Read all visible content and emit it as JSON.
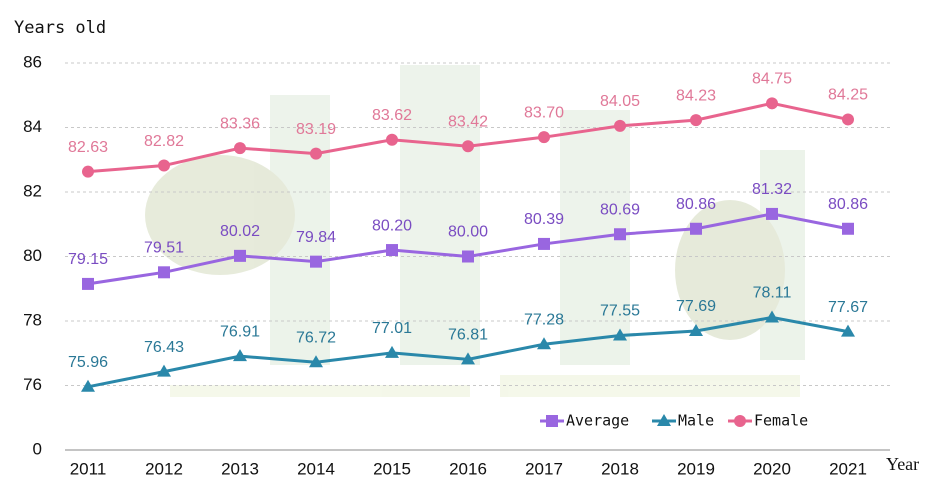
{
  "chart_data": {
    "type": "line",
    "y_axis_label": "Years old",
    "x_axis_label": "Year",
    "categories": [
      "2011",
      "2012",
      "2013",
      "2014",
      "2015",
      "2016",
      "2017",
      "2018",
      "2019",
      "2020",
      "2021"
    ],
    "series": [
      {
        "name": "Average",
        "color": "#9966e0",
        "label_color": "#7a4cc2",
        "marker": "square",
        "values": [
          79.15,
          79.51,
          80.02,
          79.84,
          80.2,
          80.0,
          80.39,
          80.69,
          80.86,
          81.32,
          80.86
        ],
        "value_labels": [
          "79.15",
          "79.51",
          "80.02",
          "79.84",
          "80.20",
          "80.00",
          "80.39",
          "80.69",
          "80.86",
          "81.32",
          "80.86"
        ]
      },
      {
        "name": "Male",
        "color": "#2a88aa",
        "label_color": "#2a7896",
        "marker": "triangle",
        "values": [
          75.96,
          76.43,
          76.91,
          76.72,
          77.01,
          76.81,
          77.28,
          77.55,
          77.69,
          78.11,
          77.67
        ],
        "value_labels": [
          "75.96",
          "76.43",
          "76.91",
          "76.72",
          "77.01",
          "76.81",
          "77.28",
          "77.55",
          "77.69",
          "78.11",
          "77.67"
        ]
      },
      {
        "name": "Female",
        "color": "#e8648e",
        "label_color": "#e07898",
        "marker": "circle",
        "values": [
          82.63,
          82.82,
          83.36,
          83.19,
          83.62,
          83.42,
          83.7,
          84.05,
          84.23,
          84.75,
          84.25
        ],
        "value_labels": [
          "82.63",
          "82.82",
          "83.36",
          "83.19",
          "83.62",
          "83.42",
          "83.70",
          "84.05",
          "84.23",
          "84.75",
          "84.25"
        ]
      }
    ],
    "ylim": [
      0,
      86
    ],
    "axis_break": [
      0,
      74
    ],
    "yticks": [
      0,
      76,
      78,
      80,
      82,
      84,
      86
    ],
    "grid": true,
    "legend": "lower right"
  }
}
